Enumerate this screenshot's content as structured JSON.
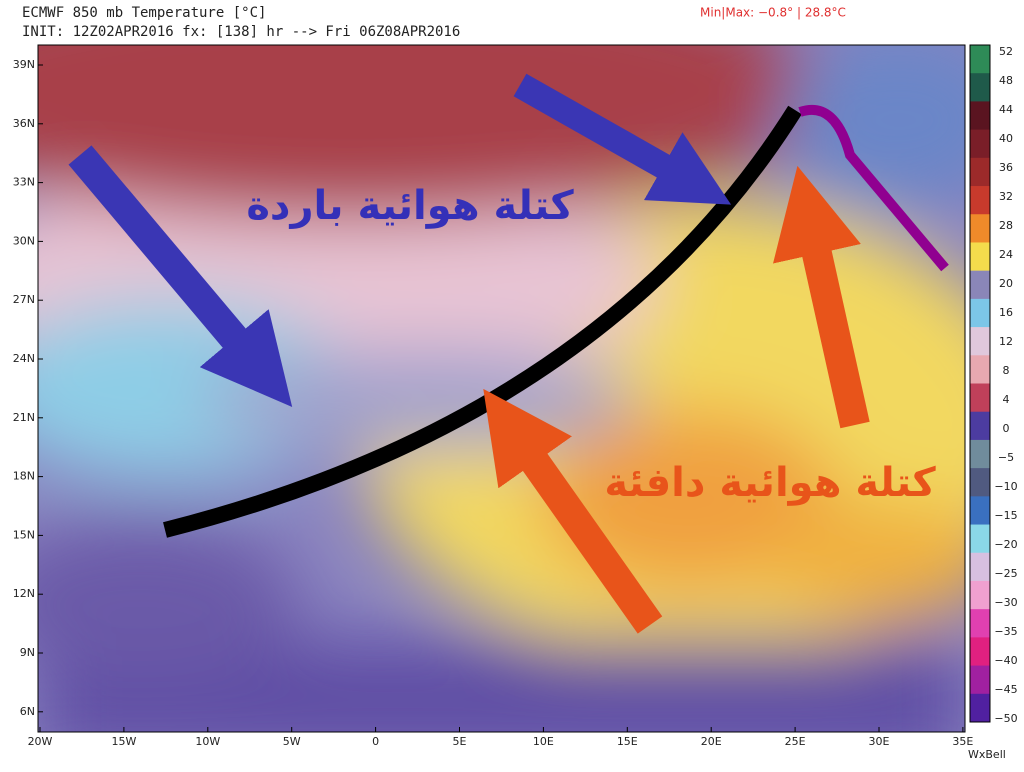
{
  "header": {
    "title": "ECMWF 850 mb Temperature [°C]",
    "init": "INIT: 12Z02APR2016  fx: [138] hr --> Fri 06Z08APR2016",
    "minmax": "Min|Max: −0.8° | 28.8°C"
  },
  "map": {
    "lat_labels": [
      "39N",
      "36N",
      "33N",
      "30N",
      "27N",
      "24N",
      "21N",
      "18N",
      "15N",
      "12N",
      "9N",
      "6N"
    ],
    "lon_labels": [
      "20W",
      "15W",
      "10W",
      "5W",
      "0",
      "5E",
      "10E",
      "15E",
      "20E",
      "25E",
      "30E",
      "35E"
    ],
    "annotations": {
      "cold": "كتلة هوائية باردة",
      "warm": "كتلة هوائية دافئة"
    }
  },
  "colorbar": {
    "labels": [
      "52",
      "48",
      "44",
      "40",
      "36",
      "32",
      "28",
      "24",
      "20",
      "16",
      "12",
      "8",
      "4",
      "0",
      "−5",
      "−10",
      "−15",
      "−20",
      "−25",
      "−30",
      "−35",
      "−40",
      "−45",
      "−50"
    ]
  },
  "footer": {
    "credit": "WxBell"
  }
}
